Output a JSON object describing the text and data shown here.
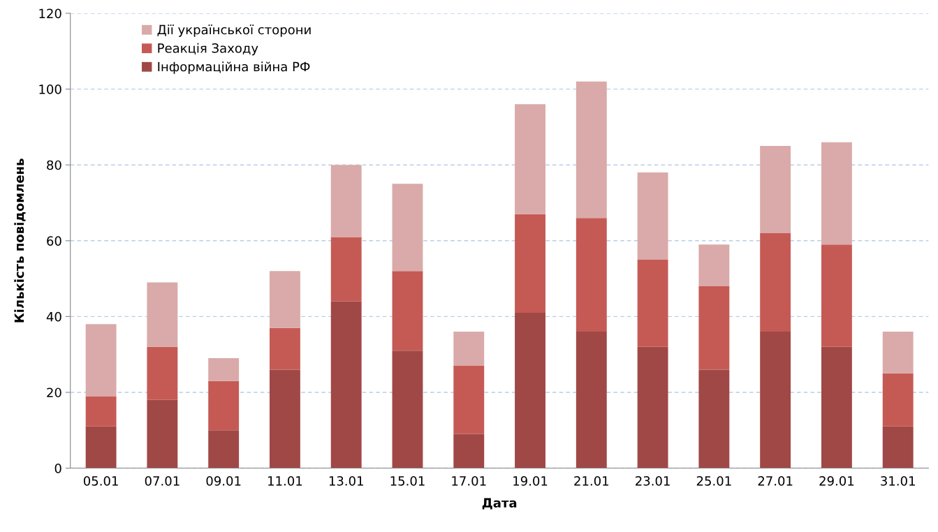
{
  "chart_data": {
    "type": "bar",
    "stacked": true,
    "xlabel": "Дата",
    "ylabel": "Кількість повідомлень",
    "categories": [
      "05.01",
      "07.01",
      "09.01",
      "11.01",
      "13.01",
      "15.01",
      "17.01",
      "19.01",
      "21.01",
      "23.01",
      "25.01",
      "27.01",
      "29.01",
      "31.01"
    ],
    "series": [
      {
        "name": "Інформаційна війна РФ",
        "color": "#a04846",
        "values": [
          11,
          18,
          10,
          26,
          44,
          31,
          9,
          41,
          36,
          32,
          26,
          36,
          32,
          11
        ]
      },
      {
        "name": "Реакція Заходу",
        "color": "#c55a55",
        "values": [
          8,
          14,
          13,
          11,
          17,
          21,
          18,
          26,
          30,
          23,
          22,
          26,
          27,
          14
        ]
      },
      {
        "name": "Дії української сторони",
        "color": "#d9aaa9",
        "values": [
          19,
          17,
          6,
          15,
          19,
          23,
          9,
          29,
          36,
          23,
          11,
          23,
          27,
          11
        ]
      }
    ],
    "ylim": [
      0,
      120
    ],
    "yticks": [
      0,
      20,
      40,
      60,
      80,
      100,
      120
    ],
    "grid": "y",
    "legend": "top left"
  }
}
